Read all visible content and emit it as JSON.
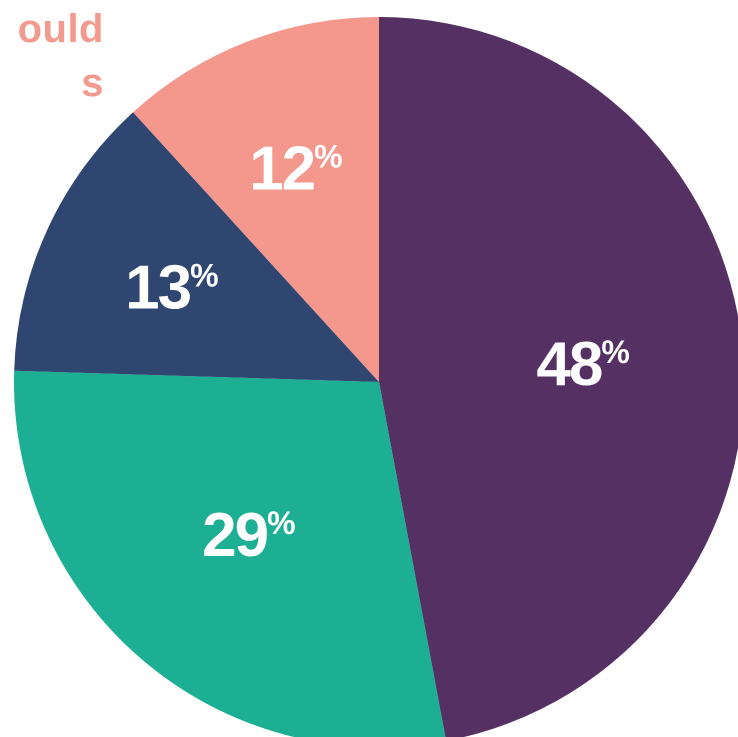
{
  "heading_fragments": [
    "ould",
    "s"
  ],
  "chart_data": {
    "type": "pie",
    "title": "",
    "start_angle_deg": 0,
    "direction": "clockwise",
    "slices": [
      {
        "label": "48%",
        "value": 48,
        "color": "#553163"
      },
      {
        "label": "29%",
        "value": 29,
        "color": "#1daf93"
      },
      {
        "label": "13%",
        "value": 13,
        "color": "#2e4670"
      },
      {
        "label": "12%",
        "value": 12,
        "color": "#f4978d"
      }
    ]
  }
}
